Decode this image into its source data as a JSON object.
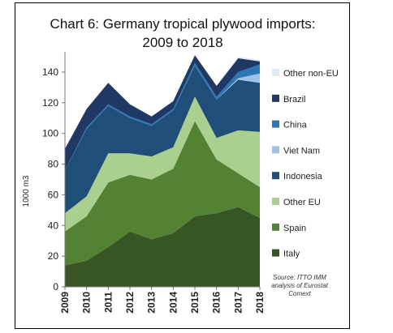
{
  "chart_data": {
    "type": "area",
    "stacked": true,
    "title": "Chart 6: Germany tropical plywood imports:",
    "subtitle": "2009 to 2018",
    "ylabel": "1000 m3",
    "xlabel": "",
    "ylim": [
      0,
      150
    ],
    "yticks": [
      0,
      20,
      40,
      60,
      80,
      100,
      120,
      140
    ],
    "categories": [
      "2009",
      "2010",
      "2011",
      "2012",
      "2013",
      "2014",
      "2015",
      "2016",
      "2017",
      "2018"
    ],
    "legend_position": "right",
    "grid": false,
    "source": "Source: ITTO IMM analysis of Eurostat Comext",
    "series": [
      {
        "name": "Italy",
        "color": "#375623",
        "values": [
          14,
          17,
          26,
          36,
          31,
          35,
          46,
          48,
          52,
          45
        ]
      },
      {
        "name": "Spain",
        "color": "#548235",
        "values": [
          22,
          29,
          42,
          37,
          39,
          42,
          62,
          35,
          22,
          20
        ]
      },
      {
        "name": "Other EU",
        "color": "#a9d08e",
        "values": [
          12,
          13,
          19,
          14,
          15,
          14,
          16,
          14,
          28,
          36
        ]
      },
      {
        "name": "Indonesia",
        "color": "#1f4e79",
        "values": [
          28,
          44,
          31,
          23,
          20,
          24,
          20,
          25,
          33,
          32
        ]
      },
      {
        "name": "Viet Nam",
        "color": "#9dc3e6",
        "values": [
          0,
          0,
          0,
          0,
          0,
          0,
          0,
          0,
          1,
          6
        ]
      },
      {
        "name": "China",
        "color": "#2e75b6",
        "values": [
          0,
          1,
          1,
          1,
          1,
          1,
          2,
          2,
          4,
          6
        ]
      },
      {
        "name": "Brazil",
        "color": "#203864",
        "values": [
          14,
          12,
          14,
          8,
          5,
          5,
          5,
          7,
          9,
          2
        ]
      },
      {
        "name": "Other non-EU",
        "color": "#deebf7",
        "values": [
          0,
          0,
          0,
          0,
          0,
          0,
          0,
          0,
          1,
          1
        ]
      }
    ]
  }
}
